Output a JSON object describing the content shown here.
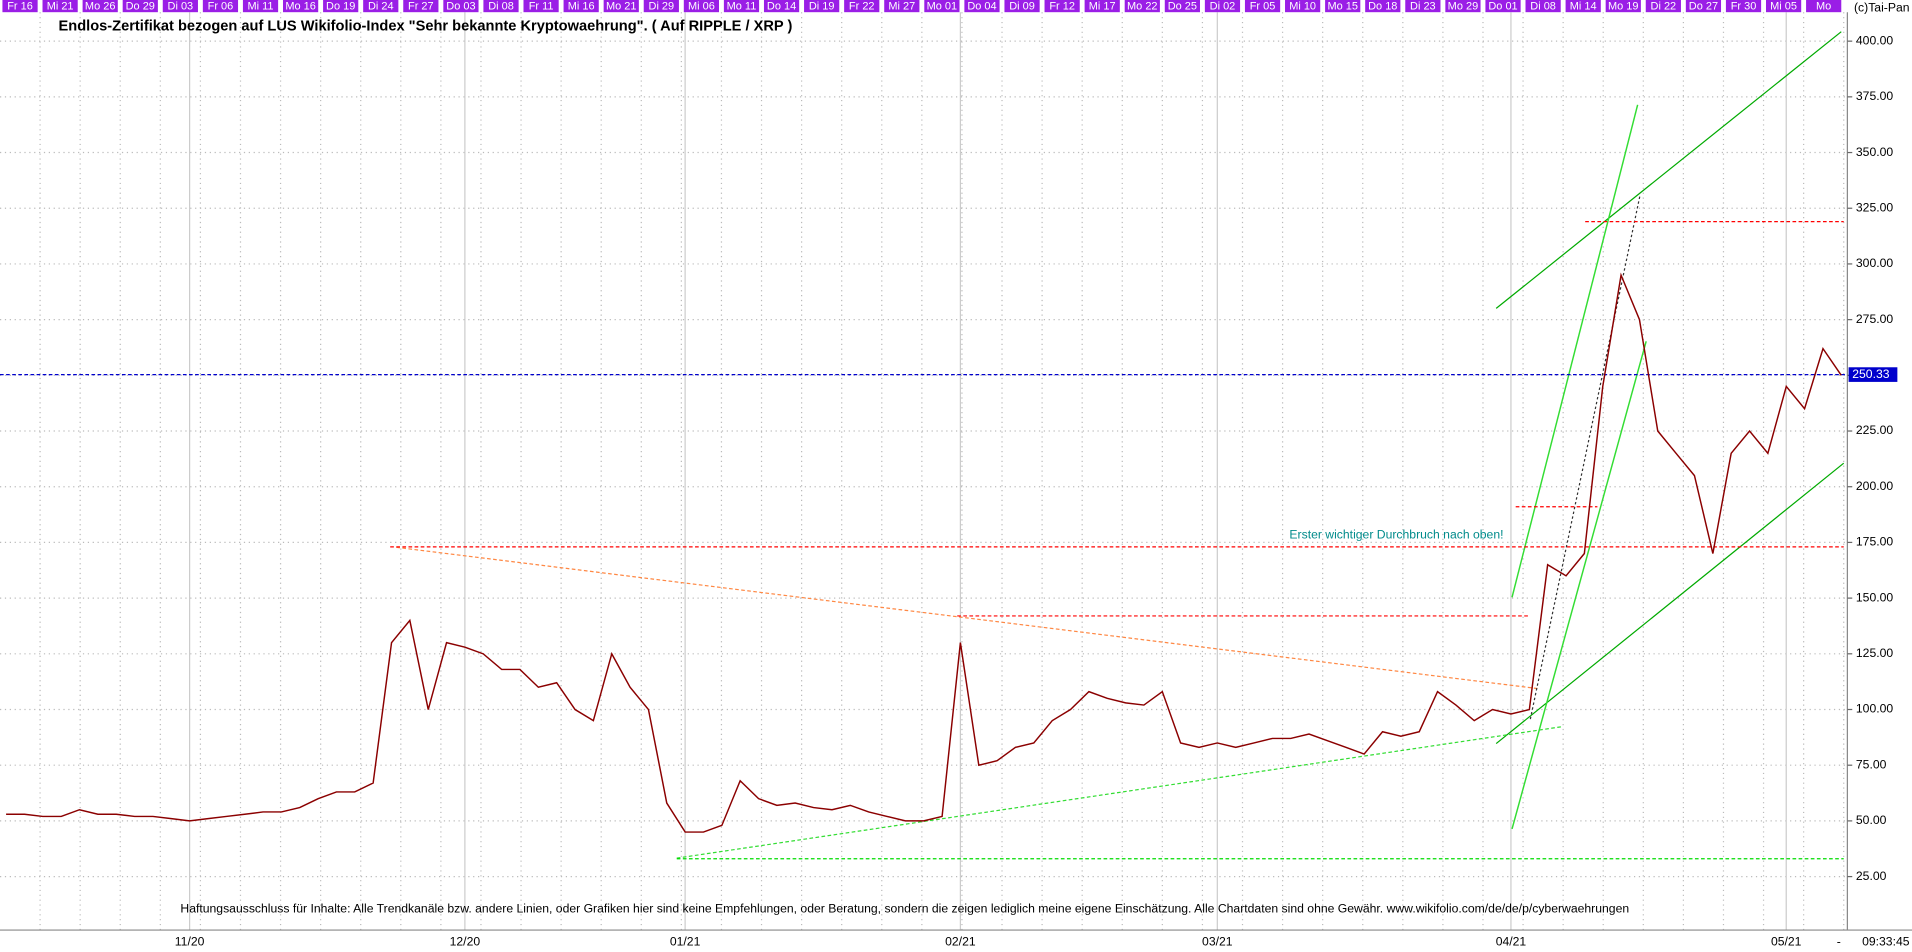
{
  "chart_data": {
    "type": "line",
    "title": "Endlos-Zertifikat bezogen auf LUS Wikifolio-Index \"Sehr bekannte Kryptowaehrung\". ( Auf RIPPLE / XRP )",
    "source": "(c)Tai-Pan",
    "annotation": "Erster wichtiger Durchbruch nach oben!",
    "disclaimer": "Haftungsausschluss für Inhalte: Alle Trendkanäle bzw. andere Linien, oder Grafiken hier sind keine Empfehlungen, oder Beratung, sondern die zeigen lediglich meine eigene Einschätzung. Alle Chartdaten sind ohne Gewähr.  www.wikifolio.com/de/de/p/cyberwaehrungen",
    "time": "09:33:45",
    "axis_end": "-",
    "day_labels": [
      "Fr 16",
      "Mi 21",
      "Mo 26",
      "Do 29",
      "Di 03",
      "Fr 06",
      "Mi 11",
      "Mo 16",
      "Do 19",
      "Di 24",
      "Fr 27",
      "Do 03",
      "Di 08",
      "Fr 11",
      "Mi 16",
      "Mo 21",
      "Di 29",
      "Mi 06",
      "Mo 11",
      "Do 14",
      "Di 19",
      "Fr 22",
      "Mi 27",
      "Mo 01",
      "Do 04",
      "Di 09",
      "Fr 12",
      "Mi 17",
      "Mo 22",
      "Do 25",
      "Di 02",
      "Fr 05",
      "Mi 10",
      "Mo 15",
      "Do 18",
      "Di 23",
      "Mo 29",
      "Do 01",
      "Di 08",
      "Mi 14",
      "Mo 19",
      "Di 22",
      "Do 27",
      "Fr 30",
      "Mi 05",
      "Mo"
    ],
    "categories": [
      null,
      null,
      null,
      null,
      null,
      null,
      null,
      null,
      null,
      null,
      "11/20",
      null,
      null,
      null,
      null,
      null,
      null,
      null,
      null,
      null,
      null,
      null,
      null,
      null,
      null,
      "12/20",
      null,
      null,
      null,
      null,
      null,
      null,
      null,
      null,
      null,
      null,
      null,
      "01/21",
      null,
      null,
      null,
      null,
      null,
      null,
      null,
      null,
      null,
      null,
      null,
      null,
      null,
      null,
      "02/21",
      null,
      null,
      null,
      null,
      null,
      null,
      null,
      null,
      null,
      null,
      null,
      null,
      null,
      "03/21",
      null,
      null,
      null,
      null,
      null,
      null,
      null,
      null,
      null,
      null,
      null,
      null,
      null,
      null,
      null,
      "04/21",
      null,
      null,
      null,
      null,
      null,
      null,
      null,
      null,
      null,
      null,
      null,
      null,
      null,
      null,
      "05/21",
      null,
      null,
      null
    ],
    "values": [
      53,
      53,
      52,
      52,
      55,
      53,
      53,
      52,
      52,
      51,
      50,
      51,
      52,
      53,
      54,
      54,
      56,
      60,
      63,
      63,
      67,
      130,
      140,
      100,
      130,
      128,
      125,
      118,
      118,
      110,
      112,
      100,
      95,
      125,
      110,
      100,
      58,
      45,
      45,
      48,
      68,
      60,
      57,
      58,
      56,
      55,
      57,
      54,
      52,
      50,
      50,
      52,
      130,
      75,
      77,
      83,
      85,
      95,
      100,
      108,
      105,
      103,
      102,
      108,
      85,
      83,
      85,
      83,
      85,
      87,
      87,
      89,
      86,
      83,
      80,
      90,
      88,
      90,
      108,
      102,
      95,
      100,
      98,
      100,
      165,
      160,
      170,
      245,
      295,
      275,
      225,
      215,
      205,
      170,
      215,
      225,
      215,
      245,
      235,
      262,
      250
    ],
    "color": "#8b0000",
    "current_price": 250.33,
    "levels": [
      {
        "value": 173,
        "color": "#ff0000"
      },
      {
        "value": 319,
        "color": "#ff0000"
      },
      {
        "value": 191,
        "color": "#ff0000"
      },
      {
        "value": 142,
        "color": "#ff0000"
      },
      {
        "value": 33,
        "color": "#00dd00"
      }
    ],
    "ylim": [
      1,
      413
    ],
    "yticks": [
      {
        "value": 25,
        "label": "25.00"
      },
      {
        "value": 50,
        "label": "50.00"
      },
      {
        "value": 75,
        "label": "75.00"
      },
      {
        "value": 100,
        "label": "100.00"
      },
      {
        "value": 125,
        "label": "125.00"
      },
      {
        "value": 150,
        "label": "150.00"
      },
      {
        "value": 175,
        "label": "175.00"
      },
      {
        "value": 200,
        "label": "200.00"
      },
      {
        "value": 225,
        "label": "225.00"
      },
      {
        "value": 250,
        "label": "250.00"
      },
      {
        "value": 275,
        "label": "275.00"
      },
      {
        "value": 300,
        "label": "300.00"
      },
      {
        "value": 325,
        "label": "325.00"
      },
      {
        "value": 350,
        "label": "350.00"
      },
      {
        "value": 375,
        "label": "375.00"
      },
      {
        "value": 400,
        "label": "400.00"
      }
    ],
    "grid": true
  }
}
